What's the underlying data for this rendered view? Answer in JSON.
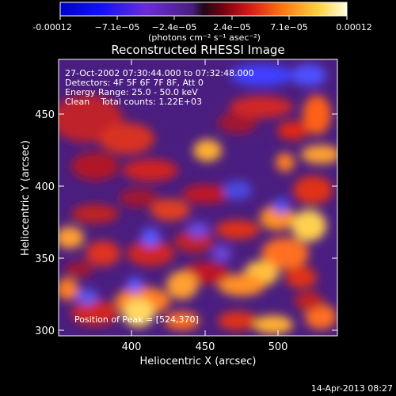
{
  "colorbar": {
    "tick_labels": [
      "-0.00012",
      "−7.1e−05",
      "−2.4e−05",
      "2.4e−05",
      "7.1e−05",
      "0.00012"
    ],
    "units": "(photons cm⁻² s⁻¹ asec⁻²)",
    "range": [
      -0.00012,
      0.00012
    ]
  },
  "image": {
    "title": "Reconstructed RHESSI Image",
    "annotations": [
      "27-Oct-2002 07:30:44.000 to 07:32:48.000",
      "Detectors: 4F 5F 6F 7F 8F, Att 0",
      "Energy Range: 25.0 - 50.0 keV",
      "Clean    Total counts: 1.22E+03"
    ],
    "peak_label": "Position of Peak = [524,370]",
    "peak_position": [
      524,
      370
    ],
    "xlabel": "Heliocentric X (arcsec)",
    "ylabel": "Heliocentric Y (arcsec)",
    "xlim": [
      355,
      540
    ],
    "ylim": [
      296,
      480
    ],
    "x_ticks": [
      "400",
      "450",
      "500"
    ],
    "y_ticks": [
      "300",
      "350",
      "400",
      "450"
    ]
  },
  "footer": {
    "timestamp": "14-Apr-2013 08:27"
  }
}
